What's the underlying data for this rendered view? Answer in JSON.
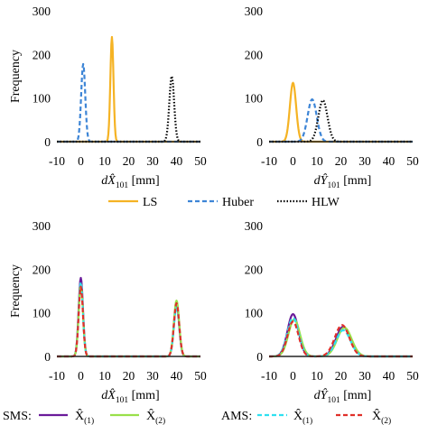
{
  "chart_data": [
    {
      "type": "line",
      "ylabel": "Frequency",
      "xlabel_sym": "dX̂",
      "xlabel_sub": "101",
      "xlabel_unit": "[mm]",
      "xlim": [
        -10,
        50
      ],
      "ylim": [
        0,
        300
      ],
      "xticks": [
        "-10",
        "0",
        "10",
        "20",
        "30",
        "40",
        "50"
      ],
      "yticks": [
        "0",
        "100",
        "200",
        "300"
      ],
      "series": [
        {
          "name": "LS",
          "color": "#f5b324",
          "dash": "solid",
          "peaks": [
            {
              "mu": 13,
              "sd": 0.65,
              "amp": 240
            }
          ]
        },
        {
          "name": "Huber",
          "color": "#3d85d6",
          "dash": "dashed",
          "peaks": [
            {
              "mu": 1,
              "sd": 0.85,
              "amp": 178
            }
          ]
        },
        {
          "name": "HLW",
          "color": "#000000",
          "dash": "dotted",
          "peaks": [
            {
              "mu": 38,
              "sd": 1.0,
              "amp": 150
            }
          ]
        }
      ]
    },
    {
      "type": "line",
      "ylabel": "",
      "xlabel_sym": "dŶ",
      "xlabel_sub": "101",
      "xlabel_unit": "[mm]",
      "xlim": [
        -10,
        50
      ],
      "ylim": [
        0,
        300
      ],
      "xticks": [
        "-10",
        "0",
        "10",
        "20",
        "30",
        "40",
        "50"
      ],
      "yticks": [
        "0",
        "100",
        "200",
        "300"
      ],
      "series": [
        {
          "name": "LS",
          "color": "#f5b324",
          "dash": "solid",
          "peaks": [
            {
              "mu": 0,
              "sd": 1.3,
              "amp": 135
            }
          ]
        },
        {
          "name": "Huber",
          "color": "#3d85d6",
          "dash": "dashed",
          "peaks": [
            {
              "mu": 8,
              "sd": 1.9,
              "amp": 97
            }
          ]
        },
        {
          "name": "HLW",
          "color": "#000000",
          "dash": "dotted",
          "peaks": [
            {
              "mu": 12.5,
              "sd": 1.9,
              "amp": 95
            }
          ]
        }
      ]
    },
    {
      "type": "line",
      "ylabel": "Frequency",
      "xlabel_sym": "dX̂",
      "xlabel_sub": "101",
      "xlabel_unit": "[mm]",
      "xlim": [
        -10,
        50
      ],
      "ylim": [
        0,
        300
      ],
      "xticks": [
        "-10",
        "0",
        "10",
        "20",
        "30",
        "40",
        "50"
      ],
      "yticks": [
        "0",
        "100",
        "200",
        "300"
      ],
      "series": [
        {
          "name": "SMS X̂(1)",
          "color": "#6a1b9a",
          "dash": "solid",
          "peaks": [
            {
              "mu": 0,
              "sd": 0.9,
              "amp": 180
            },
            {
              "mu": 40,
              "sd": 1.1,
              "amp": 120
            }
          ]
        },
        {
          "name": "SMS X̂(2)",
          "color": "#99e04a",
          "dash": "solid",
          "peaks": [
            {
              "mu": 0,
              "sd": 0.9,
              "amp": 165
            },
            {
              "mu": 40,
              "sd": 1.1,
              "amp": 128
            }
          ]
        },
        {
          "name": "AMS X̂(1)",
          "color": "#2ee0f0",
          "dash": "dashed",
          "peaks": [
            {
              "mu": 0,
              "sd": 0.9,
              "amp": 170
            },
            {
              "mu": 40,
              "sd": 1.1,
              "amp": 112
            }
          ]
        },
        {
          "name": "AMS X̂(2)",
          "color": "#e0302a",
          "dash": "dashed",
          "peaks": [
            {
              "mu": 0,
              "sd": 0.9,
              "amp": 160
            },
            {
              "mu": 40,
              "sd": 1.1,
              "amp": 122
            }
          ]
        }
      ]
    },
    {
      "type": "line",
      "ylabel": "",
      "xlabel_sym": "dŶ",
      "xlabel_sub": "101",
      "xlabel_unit": "[mm]",
      "xlim": [
        -10,
        50
      ],
      "ylim": [
        0,
        300
      ],
      "xticks": [
        "-10",
        "0",
        "10",
        "20",
        "30",
        "40",
        "50"
      ],
      "yticks": [
        "0",
        "100",
        "200",
        "300"
      ],
      "series": [
        {
          "name": "SMS X̂(1)",
          "color": "#6a1b9a",
          "dash": "solid",
          "peaks": [
            {
              "mu": 0,
              "sd": 2.3,
              "amp": 97
            },
            {
              "mu": 21,
              "sd": 3.0,
              "amp": 68
            }
          ]
        },
        {
          "name": "SMS X̂(2)",
          "color": "#99e04a",
          "dash": "solid",
          "peaks": [
            {
              "mu": 0.5,
              "sd": 2.4,
              "amp": 85
            },
            {
              "mu": 21.5,
              "sd": 3.0,
              "amp": 66
            }
          ]
        },
        {
          "name": "AMS X̂(1)",
          "color": "#2ee0f0",
          "dash": "dashed",
          "peaks": [
            {
              "mu": 0,
              "sd": 2.4,
              "amp": 88
            },
            {
              "mu": 21,
              "sd": 3.0,
              "amp": 60
            }
          ]
        },
        {
          "name": "AMS X̂(2)",
          "color": "#e0302a",
          "dash": "dashed",
          "peaks": [
            {
              "mu": 0,
              "sd": 2.3,
              "amp": 80
            },
            {
              "mu": 20.5,
              "sd": 3.0,
              "amp": 72
            }
          ]
        }
      ]
    }
  ],
  "legend_top": [
    {
      "label": "LS",
      "color": "#f5b324",
      "dash": "solid"
    },
    {
      "label": "Huber",
      "color": "#3d85d6",
      "dash": "dashed"
    },
    {
      "label": "HLW",
      "color": "#000000",
      "dash": "dotted"
    }
  ],
  "legend_bottom": {
    "sms_prefix": "SMS:",
    "ams_prefix": "AMS:",
    "x_sym": "X̂",
    "sub1": "(1)",
    "sub2": "(2)",
    "sms1_color": "#6a1b9a",
    "sms2_color": "#99e04a",
    "ams1_color": "#2ee0f0",
    "ams2_color": "#e0302a"
  }
}
